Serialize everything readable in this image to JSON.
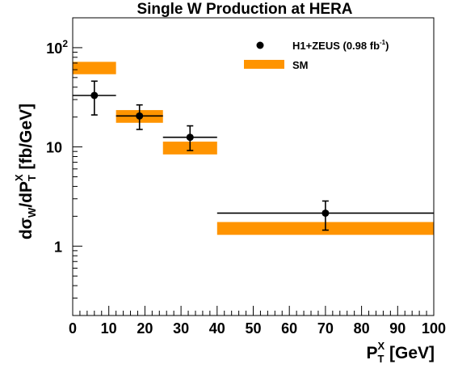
{
  "chart_data": {
    "type": "scatter",
    "title": "Single W Production at HERA",
    "xlabel": {
      "main": "P",
      "sup": "X",
      "sub": "T",
      "unit": " [GeV]"
    },
    "ylabel": {
      "pre": "dσ",
      "pre_sub": "W",
      "mid": "/dP",
      "mid_sup": "X",
      "mid_sub": "T",
      "unit": " [fb/GeV]"
    },
    "xlim": [
      0,
      100
    ],
    "ylim": [
      0.2,
      200
    ],
    "yscale": "log",
    "x_ticks": [
      "0",
      "10",
      "20",
      "30",
      "40",
      "50",
      "60",
      "70",
      "80",
      "90",
      "100"
    ],
    "y_ticks": [
      {
        "value": 1,
        "label": "1"
      },
      {
        "value": 10,
        "label": "10"
      },
      {
        "value": 100,
        "label": "10",
        "sup": "2"
      }
    ],
    "legend": {
      "position": "top-right",
      "entries": [
        {
          "label": "H1+ZEUS (0.98 fb",
          "sup": "-1",
          "suffix": ")",
          "marker": "point"
        },
        {
          "label": "SM",
          "marker": "band"
        }
      ]
    },
    "series": [
      {
        "name": "H1+ZEUS (0.98 fb-1)",
        "kind": "points",
        "color": "#000000",
        "points": [
          {
            "x": 6,
            "xlo": 0,
            "xhi": 12,
            "y": 33,
            "ylo": 21,
            "yhi": 46
          },
          {
            "x": 18.5,
            "xlo": 12,
            "xhi": 25,
            "y": 20.5,
            "ylo": 15,
            "yhi": 26.5
          },
          {
            "x": 32.5,
            "xlo": 25,
            "xhi": 40,
            "y": 12.5,
            "ylo": 9.2,
            "yhi": 16.3
          },
          {
            "x": 70,
            "xlo": 40,
            "xhi": 100,
            "y": 2.15,
            "ylo": 1.45,
            "yhi": 2.85
          }
        ]
      },
      {
        "name": "SM",
        "kind": "bands",
        "color": "#ff9400",
        "bands": [
          {
            "xlo": 0,
            "xhi": 12,
            "ylo": 54,
            "yhi": 72
          },
          {
            "xlo": 12,
            "xhi": 25,
            "ylo": 17.5,
            "yhi": 23.5
          },
          {
            "xlo": 25,
            "xhi": 40,
            "ylo": 8.4,
            "yhi": 11.3
          },
          {
            "xlo": 40,
            "xhi": 100,
            "ylo": 1.3,
            "yhi": 1.75
          }
        ]
      }
    ]
  }
}
